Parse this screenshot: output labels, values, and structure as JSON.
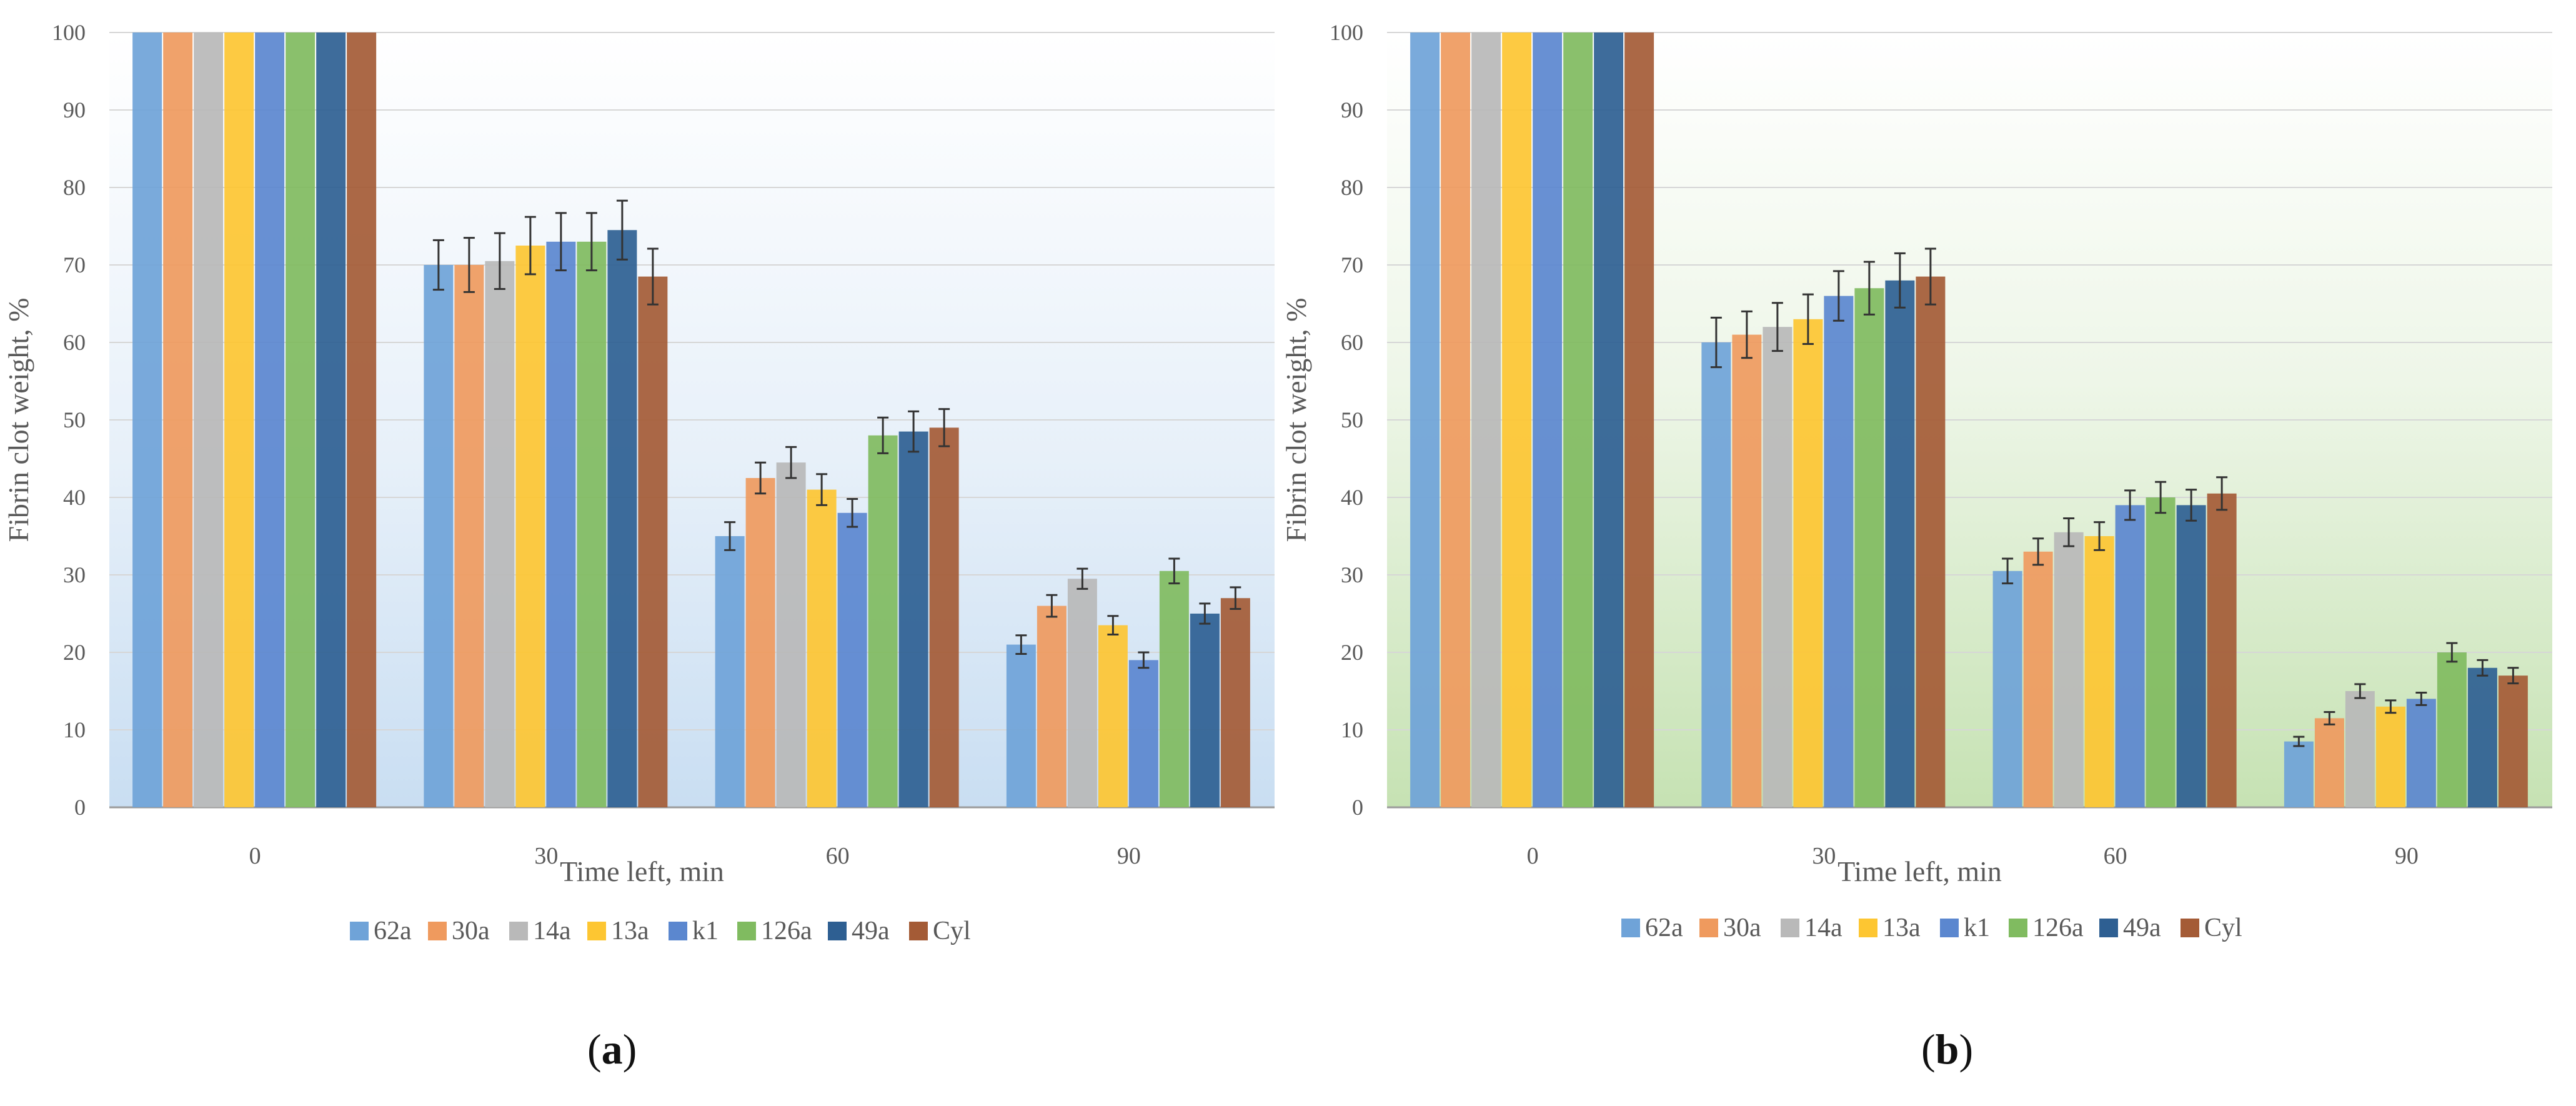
{
  "figure": {
    "panel_labels": [
      {
        "open": "(",
        "letter": "a",
        "close": ")"
      },
      {
        "open": "(",
        "letter": "b",
        "close": ")"
      }
    ]
  },
  "colors": {
    "62a": "#6fa3d8",
    "30a": "#ef9a5e",
    "14a": "#b9b9b9",
    "13a": "#fdc632",
    "k1": "#5b87cf",
    "126a": "#80bb60",
    "49a": "#2e5f92",
    "Cyl": "#a45b36",
    "axis": "#9a9a9a",
    "grid": "#d6d6d6",
    "text": "#595959",
    "bg_a": "#d5e6f5",
    "bg_b": "#cfe6bf"
  },
  "chart_data": [
    {
      "type": "bar",
      "panel": "a",
      "title": "",
      "xlabel": "Time left, min",
      "ylabel": "Fibrin clot weight, %",
      "ylim": [
        0,
        100
      ],
      "yticks": [
        "0",
        "10",
        "20",
        "30",
        "40",
        "50",
        "60",
        "70",
        "80",
        "90",
        "100"
      ],
      "categories": [
        "0",
        "30",
        "60",
        "90"
      ],
      "legend_position": "bottom",
      "series": [
        {
          "name": "62a",
          "values": [
            100,
            70,
            35,
            21
          ],
          "errors": [
            0,
            3.2,
            1.8,
            1.2
          ]
        },
        {
          "name": "30a",
          "values": [
            100,
            70,
            42.5,
            26
          ],
          "errors": [
            0,
            3.5,
            2.0,
            1.4
          ]
        },
        {
          "name": "14a",
          "values": [
            100,
            70.5,
            44.5,
            29.5
          ],
          "errors": [
            0,
            3.6,
            2.0,
            1.3
          ]
        },
        {
          "name": "13a",
          "values": [
            100,
            72.5,
            41,
            23.5
          ],
          "errors": [
            0,
            3.7,
            2.0,
            1.2
          ]
        },
        {
          "name": "k1",
          "values": [
            100,
            73,
            38,
            19
          ],
          "errors": [
            0,
            3.7,
            1.8,
            1.0
          ]
        },
        {
          "name": "126a",
          "values": [
            100,
            73,
            48,
            30.5
          ],
          "errors": [
            0,
            3.7,
            2.3,
            1.6
          ]
        },
        {
          "name": "49a",
          "values": [
            100,
            74.5,
            48.5,
            25
          ],
          "errors": [
            0,
            3.8,
            2.6,
            1.3
          ]
        },
        {
          "name": "Cyl",
          "values": [
            100,
            68.5,
            49,
            27
          ],
          "errors": [
            0,
            3.6,
            2.4,
            1.4
          ]
        }
      ]
    },
    {
      "type": "bar",
      "panel": "b",
      "title": "",
      "xlabel": "Time left, min",
      "ylabel": "Fibrin clot weight, %",
      "ylim": [
        0,
        100
      ],
      "yticks": [
        "0",
        "10",
        "20",
        "30",
        "40",
        "50",
        "60",
        "70",
        "80",
        "90",
        "100"
      ],
      "categories": [
        "0",
        "30",
        "60",
        "90"
      ],
      "legend_position": "bottom",
      "series": [
        {
          "name": "62a",
          "values": [
            100,
            60,
            30.5,
            8.5
          ],
          "errors": [
            0,
            3.2,
            1.6,
            0.6
          ]
        },
        {
          "name": "30a",
          "values": [
            100,
            61,
            33,
            11.5
          ],
          "errors": [
            0,
            3.0,
            1.7,
            0.8
          ]
        },
        {
          "name": "14a",
          "values": [
            100,
            62,
            35.5,
            15
          ],
          "errors": [
            0,
            3.1,
            1.8,
            0.9
          ]
        },
        {
          "name": "13a",
          "values": [
            100,
            63,
            35,
            13
          ],
          "errors": [
            0,
            3.2,
            1.8,
            0.8
          ]
        },
        {
          "name": "k1",
          "values": [
            100,
            66,
            39,
            14
          ],
          "errors": [
            0,
            3.2,
            1.9,
            0.8
          ]
        },
        {
          "name": "126a",
          "values": [
            100,
            67,
            40,
            20
          ],
          "errors": [
            0,
            3.4,
            2.0,
            1.2
          ]
        },
        {
          "name": "49a",
          "values": [
            100,
            68,
            39,
            18
          ],
          "errors": [
            0,
            3.5,
            2.0,
            1.0
          ]
        },
        {
          "name": "Cyl",
          "values": [
            100,
            68.5,
            40.5,
            17
          ],
          "errors": [
            0,
            3.6,
            2.1,
            1.0
          ]
        }
      ]
    }
  ]
}
